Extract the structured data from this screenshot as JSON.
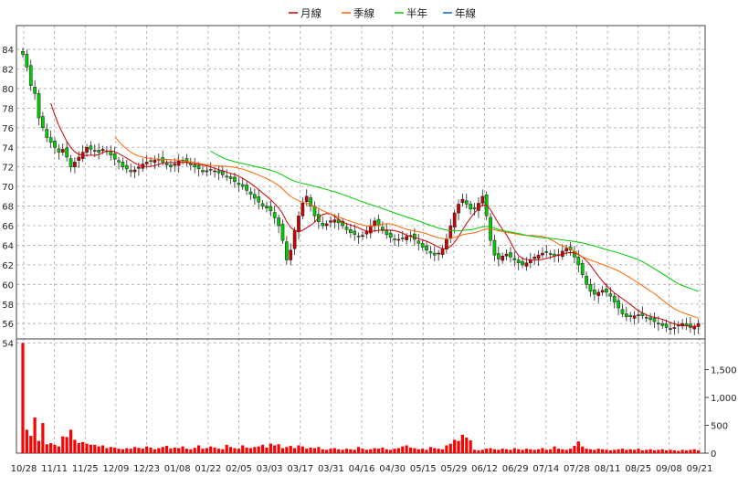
{
  "chart_data": {
    "type": "candlestick",
    "legend": [
      {
        "name": "月線",
        "color": "#cc0000"
      },
      {
        "name": "季線",
        "color": "#ff6600"
      },
      {
        "name": "半年",
        "color": "#00cc00"
      },
      {
        "name": "年線",
        "color": "#0066cc"
      }
    ],
    "price_axis": {
      "ticks": [
        "84",
        "82",
        "80",
        "78",
        "76",
        "74",
        "72",
        "70",
        "68",
        "66",
        "64",
        "62",
        "60",
        "58",
        "56",
        "54"
      ],
      "ylim": [
        53.5,
        85.5
      ]
    },
    "volume_axis": {
      "ticks": [
        "1,500",
        "1,000",
        "500",
        "0"
      ],
      "ylim": [
        0,
        2050
      ]
    },
    "x_labels": [
      "10/28",
      "11/11",
      "11/25",
      "12/09",
      "12/23",
      "01/08",
      "01/22",
      "02/05",
      "03/03",
      "03/17",
      "03/31",
      "04/16",
      "04/30",
      "05/15",
      "05/29",
      "06/12",
      "06/29",
      "07/14",
      "07/28",
      "08/11",
      "08/25",
      "09/08",
      "09/21"
    ],
    "colors": {
      "up": "#cc0000",
      "down": "#00cc00",
      "volume": "#ff0000",
      "grid": "#aaaaaa"
    },
    "close_series": [
      83.5,
      82.2,
      80.3,
      79.5,
      77.0,
      76.0,
      75.0,
      74.5,
      74.0,
      73.5,
      73.8,
      73.0,
      72.0,
      72.5,
      73.0,
      73.5,
      74.0,
      73.8,
      73.7,
      73.5,
      73.8,
      73.6,
      73.2,
      72.8,
      72.5,
      72.0,
      71.8,
      71.5,
      71.7,
      72.0,
      72.3,
      72.5,
      72.6,
      72.7,
      72.8,
      72.5,
      72.2,
      72.0,
      72.3,
      72.6,
      72.7,
      72.5,
      72.2,
      72.0,
      71.8,
      71.5,
      71.6,
      71.7,
      71.6,
      71.4,
      71.2,
      71.0,
      70.8,
      70.5,
      70.2,
      70.0,
      69.6,
      69.2,
      68.8,
      68.4,
      68.0,
      67.8,
      67.5,
      66.8,
      66.0,
      64.5,
      62.5,
      63.5,
      65.5,
      67.0,
      68.3,
      69.0,
      68.0,
      67.0,
      66.4,
      66.0,
      66.2,
      66.5,
      66.6,
      66.3,
      66.0,
      65.6,
      65.3,
      65.1,
      64.9,
      65.0,
      65.4,
      66.0,
      66.5,
      66.0,
      65.5,
      65.1,
      64.8,
      64.6,
      64.6,
      64.7,
      64.9,
      65.0,
      64.6,
      64.2,
      63.8,
      63.5,
      63.2,
      63.0,
      63.2,
      63.6,
      64.6,
      66.0,
      67.3,
      68.2,
      68.7,
      68.2,
      67.7,
      67.7,
      68.3,
      69.0,
      67.0,
      64.5,
      63.0,
      62.6,
      62.9,
      63.1,
      62.8,
      62.5,
      62.2,
      62.0,
      62.2,
      62.5,
      62.8,
      63.0,
      63.2,
      63.3,
      63.1,
      62.9,
      63.0,
      63.4,
      63.7,
      63.5,
      62.8,
      62.0,
      61.0,
      60.0,
      59.3,
      59.0,
      59.2,
      59.4,
      59.2,
      58.8,
      58.2,
      57.6,
      57.0,
      56.7,
      56.7,
      56.8,
      56.9,
      56.8,
      56.6,
      56.4,
      56.2,
      56.0,
      55.8,
      55.6,
      55.5,
      55.6,
      55.9,
      56.0,
      55.8,
      55.6,
      55.7,
      56.0
    ],
    "volume_series": [
      1980,
      420,
      310,
      640,
      220,
      540,
      160,
      180,
      150,
      120,
      300,
      290,
      420,
      240,
      180,
      200,
      170,
      150,
      150,
      120,
      140,
      90,
      110,
      100,
      80,
      70,
      90,
      80,
      110,
      95,
      80,
      120,
      100,
      70,
      90,
      110,
      130,
      85,
      100,
      90,
      120,
      80,
      70,
      95,
      140,
      80,
      90,
      120,
      100,
      80,
      70,
      150,
      110,
      90,
      80,
      140,
      100,
      90,
      110,
      120,
      150,
      100,
      170,
      140,
      160,
      90,
      110,
      130,
      90,
      140,
      120,
      80,
      100,
      90,
      110,
      70,
      60,
      80,
      90,
      70,
      60,
      80,
      70,
      60,
      110,
      80,
      60,
      70,
      90,
      80,
      100,
      70,
      60,
      80,
      90,
      120,
      140,
      100,
      90,
      70,
      80,
      60,
      110,
      90,
      80,
      70,
      140,
      170,
      240,
      220,
      330,
      280,
      230,
      60,
      50,
      60,
      80,
      90,
      70,
      60,
      80,
      70,
      60,
      90,
      70,
      60,
      80,
      70,
      60,
      70,
      90,
      60,
      70,
      120,
      80,
      70,
      60,
      80,
      130,
      210,
      120,
      80,
      70,
      60,
      80,
      70,
      60,
      50,
      60,
      70,
      80,
      60,
      70,
      60,
      80,
      50,
      60,
      70,
      50,
      60,
      70,
      50,
      60,
      50,
      40,
      60,
      50,
      60,
      70,
      50
    ]
  }
}
